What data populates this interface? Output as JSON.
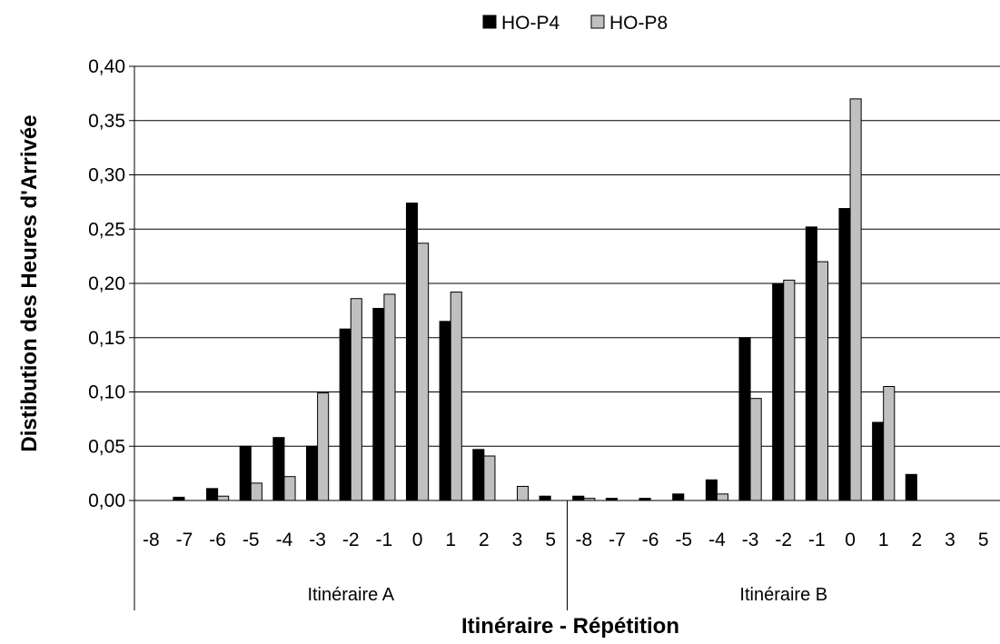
{
  "chart_data": {
    "type": "bar",
    "title": "",
    "xlabel": "Itinéraire - Répétition",
    "ylabel": "Distibution des Heures d'Arrivée",
    "ylim": [
      0,
      0.4
    ],
    "yticks": [
      "0,00",
      "0,05",
      "0,10",
      "0,15",
      "0,20",
      "0,25",
      "0,30",
      "0,35",
      "0,40"
    ],
    "grid": true,
    "legend_position": "top",
    "groups": [
      {
        "label": "Itinéraire A",
        "categories": [
          "-8",
          "-7",
          "-6",
          "-5",
          "-4",
          "-3",
          "-2",
          "-1",
          "0",
          "1",
          "2",
          "3",
          "5"
        ]
      },
      {
        "label": "Itinéraire B",
        "categories": [
          "-8",
          "-7",
          "-6",
          "-5",
          "-4",
          "-3",
          "-2",
          "-1",
          "0",
          "1",
          "2",
          "3",
          "5"
        ]
      }
    ],
    "series": [
      {
        "name": "HO-P4",
        "color": "#000000",
        "values": [
          0,
          0.003,
          0.011,
          0.05,
          0.058,
          0.05,
          0.158,
          0.177,
          0.274,
          0.165,
          0.047,
          0,
          0.004,
          0.004,
          0.002,
          0.002,
          0.006,
          0.019,
          0.15,
          0.2,
          0.252,
          0.269,
          0.072,
          0.024,
          0,
          0
        ]
      },
      {
        "name": "HO-P8",
        "color": "#c0c0c0",
        "values": [
          0,
          0,
          0.004,
          0.016,
          0.022,
          0.099,
          0.186,
          0.19,
          0.237,
          0.192,
          0.041,
          0.013,
          0,
          0.002,
          0,
          0,
          0,
          0.006,
          0.094,
          0.203,
          0.22,
          0.37,
          0.105,
          0,
          0,
          0
        ]
      }
    ]
  }
}
